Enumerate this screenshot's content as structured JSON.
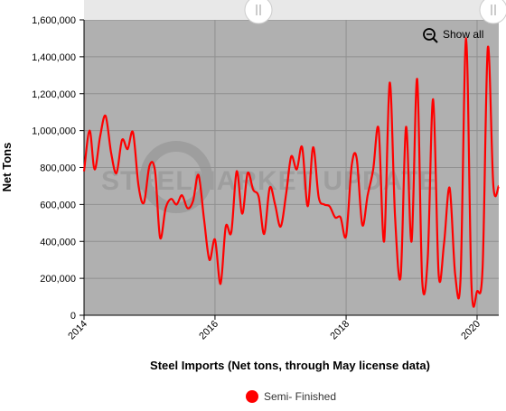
{
  "chart_data": {
    "type": "line",
    "xlabel": "Steel Imports (Net tons, through May license data)",
    "ylabel": "Net Tons",
    "xlim": [
      "2014-01-01",
      "2020-05-01"
    ],
    "ylim": [
      0,
      1600000
    ],
    "yticks": [
      0,
      200000,
      400000,
      600000,
      800000,
      1000000,
      1200000,
      1400000,
      1600000
    ],
    "ytick_labels": [
      "0",
      "200,000",
      "400,000",
      "600,000",
      "800,000",
      "1,000,000",
      "1,200,000",
      "1,400,000",
      "1,600,000"
    ],
    "xticks": [
      "2014-01-01",
      "2016-01-01",
      "2018-01-01",
      "2020-01-01"
    ],
    "xtick_labels": [
      "2014",
      "2016",
      "2018",
      "2020"
    ],
    "grid": true,
    "legend_position": "bottom-center",
    "series": [
      {
        "name": "Semi- Finished",
        "color": "#ff0000",
        "x": [
          "2014-01",
          "2014-02",
          "2014-03",
          "2014-04",
          "2014-05",
          "2014-06",
          "2014-07",
          "2014-08",
          "2014-09",
          "2014-10",
          "2014-11",
          "2014-12",
          "2015-01",
          "2015-02",
          "2015-03",
          "2015-04",
          "2015-05",
          "2015-06",
          "2015-07",
          "2015-08",
          "2015-09",
          "2015-10",
          "2015-11",
          "2015-12",
          "2016-01",
          "2016-02",
          "2016-03",
          "2016-04",
          "2016-05",
          "2016-06",
          "2016-07",
          "2016-08",
          "2016-09",
          "2016-10",
          "2016-11",
          "2016-12",
          "2017-01",
          "2017-02",
          "2017-03",
          "2017-04",
          "2017-05",
          "2017-06",
          "2017-07",
          "2017-08",
          "2017-09",
          "2017-10",
          "2017-11",
          "2017-12",
          "2018-01",
          "2018-02",
          "2018-03",
          "2018-04",
          "2018-05",
          "2018-06",
          "2018-07",
          "2018-08",
          "2018-09",
          "2018-10",
          "2018-11",
          "2018-12",
          "2019-01",
          "2019-02",
          "2019-03",
          "2019-04",
          "2019-05",
          "2019-06",
          "2019-07",
          "2019-08",
          "2019-09",
          "2019-10",
          "2019-11",
          "2019-12",
          "2020-01",
          "2020-02",
          "2020-03",
          "2020-04",
          "2020-05"
        ],
        "y": [
          780000,
          1000000,
          790000,
          970000,
          1080000,
          880000,
          770000,
          950000,
          900000,
          990000,
          700000,
          610000,
          810000,
          780000,
          420000,
          580000,
          630000,
          600000,
          650000,
          580000,
          620000,
          760000,
          520000,
          300000,
          410000,
          170000,
          480000,
          450000,
          780000,
          550000,
          770000,
          680000,
          640000,
          440000,
          690000,
          600000,
          480000,
          660000,
          860000,
          790000,
          910000,
          590000,
          910000,
          640000,
          600000,
          590000,
          530000,
          530000,
          430000,
          810000,
          850000,
          490000,
          650000,
          790000,
          1010000,
          400000,
          1260000,
          530000,
          210000,
          1020000,
          400000,
          1280000,
          190000,
          310000,
          1170000,
          220000,
          390000,
          690000,
          220000,
          200000,
          1500000,
          160000,
          130000,
          260000,
          1450000,
          700000,
          700000
        ]
      }
    ]
  },
  "ui": {
    "show_all_label": "Show all",
    "watermark_text": "STEELMARKET UPDATE"
  },
  "colors": {
    "plot_background": "#b0b0b0",
    "gridline": "#909090",
    "series_line": "#ff0000",
    "navigator_bg": "#e8e8e8"
  }
}
